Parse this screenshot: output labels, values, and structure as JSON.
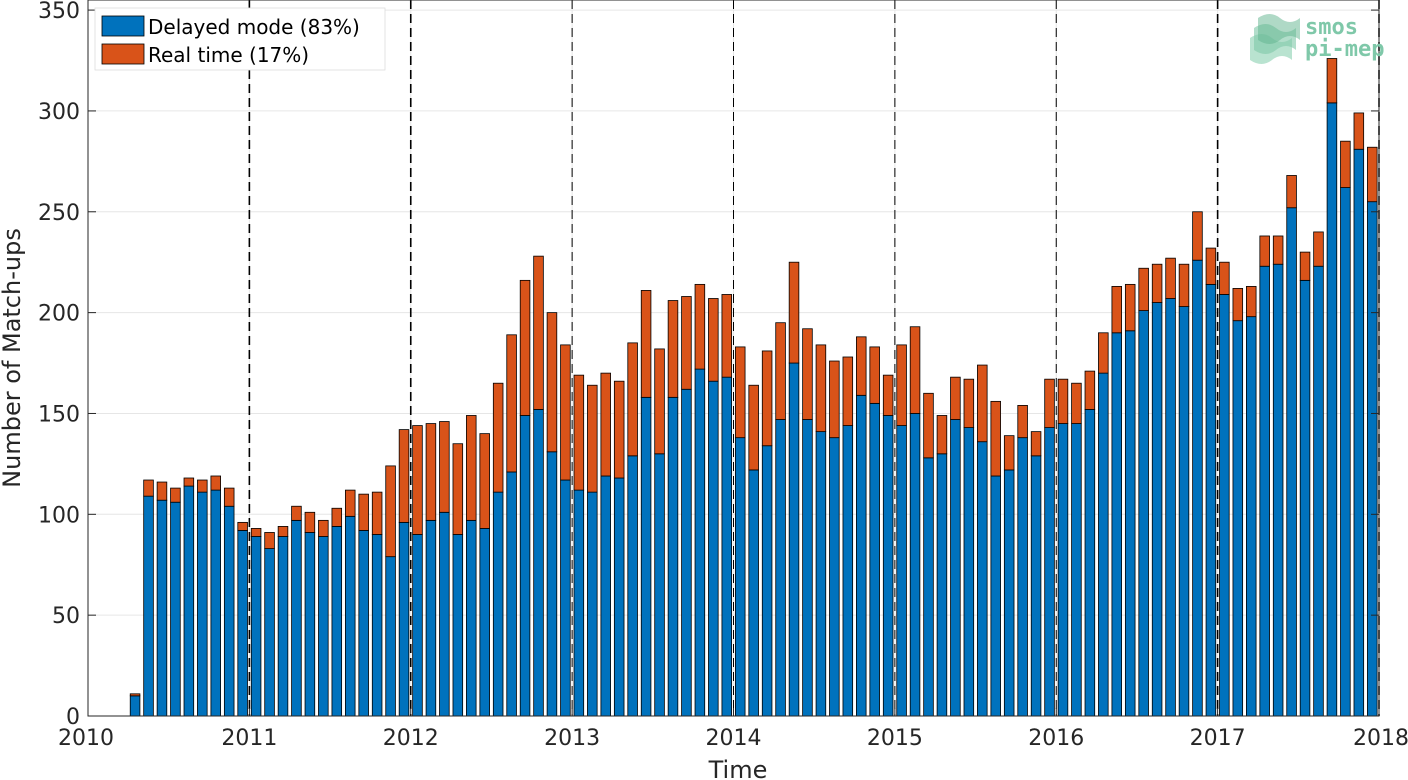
{
  "chart_data": {
    "type": "bar",
    "stacked": true,
    "title": "",
    "xlabel": "Time",
    "ylabel": "Number of Match-ups",
    "xlim": [
      2010,
      2018
    ],
    "ylim": [
      0,
      355
    ],
    "xticks": [
      "2010",
      "2011",
      "2012",
      "2013",
      "2014",
      "2015",
      "2016",
      "2017",
      "2018"
    ],
    "yticks": [
      "0",
      "50",
      "100",
      "150",
      "200",
      "250",
      "300",
      "350"
    ],
    "grid": true,
    "year_separators": "dashed vertical lines at each year boundary",
    "legend_position": "top-left",
    "colors": {
      "delayed": "#0072BD",
      "realtime": "#D95319"
    },
    "x_start_month": "2010-04",
    "series": [
      {
        "name": "Delayed mode (83%)",
        "values": [
          10,
          109,
          107,
          106,
          114,
          111,
          112,
          104,
          92,
          89,
          83,
          89,
          97,
          91,
          89,
          94,
          99,
          92,
          90,
          79,
          96,
          90,
          97,
          101,
          90,
          97,
          93,
          111,
          121,
          149,
          152,
          131,
          117,
          112,
          111,
          119,
          118,
          129,
          158,
          130,
          158,
          162,
          172,
          166,
          168,
          138,
          122,
          134,
          147,
          175,
          147,
          141,
          138,
          144,
          159,
          155,
          149,
          144,
          150,
          128,
          130,
          147,
          143,
          136,
          119,
          122,
          138,
          129,
          143,
          145,
          145,
          152,
          170,
          190,
          191,
          201,
          205,
          207,
          203,
          226,
          214,
          209,
          196,
          198,
          223,
          224,
          252,
          216,
          223,
          304,
          262,
          281,
          255
        ]
      },
      {
        "name": "Real time (17%)",
        "values": [
          1,
          8,
          9,
          7,
          4,
          6,
          7,
          9,
          4,
          4,
          8,
          5,
          7,
          10,
          8,
          9,
          13,
          18,
          21,
          45,
          46,
          54,
          48,
          45,
          45,
          52,
          47,
          54,
          68,
          67,
          76,
          69,
          67,
          57,
          53,
          51,
          48,
          56,
          53,
          52,
          48,
          46,
          42,
          41,
          41,
          45,
          42,
          47,
          48,
          50,
          45,
          43,
          38,
          34,
          29,
          28,
          20,
          40,
          43,
          32,
          19,
          21,
          24,
          38,
          37,
          17,
          16,
          12,
          24,
          22,
          20,
          19,
          20,
          23,
          23,
          21,
          19,
          20,
          21,
          24,
          18,
          16,
          16,
          15,
          15,
          14,
          16,
          14,
          17,
          22,
          23,
          18,
          27
        ]
      }
    ]
  },
  "logo": {
    "line1": "smos",
    "line2": "pi-mep"
  }
}
